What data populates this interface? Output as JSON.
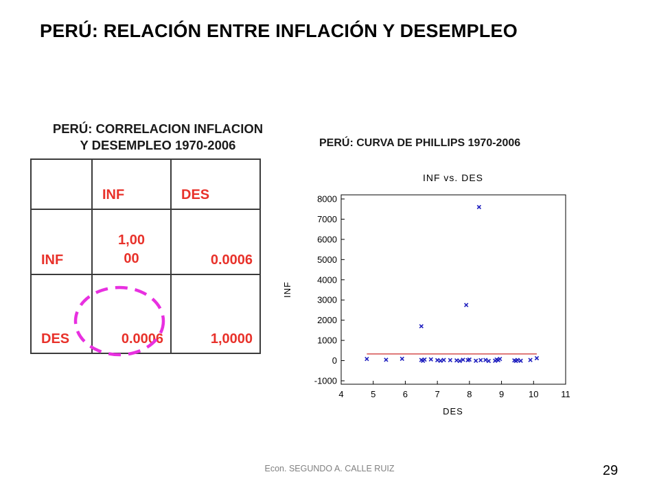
{
  "slide": {
    "title": "PERÚ: RELACIÓN ENTRE INFLACIÓN Y DESEMPLEO",
    "footer": "Econ. SEGUNDO A. CALLE RUIZ",
    "page_number": "29",
    "colors": {
      "table_text": "#e8312a",
      "highlight_circle": "#e830e0",
      "marker": "#1f1fbf",
      "fit_line": "#cc2a2a"
    }
  },
  "chart_data": [
    {
      "type": "table",
      "title_line1": "PERÚ: CORRELACION INFLACION",
      "title_line2": "Y DESEMPLEO 1970-2006",
      "columns": [
        "",
        "INF",
        "DES"
      ],
      "rows": [
        {
          "label": "INF",
          "values": [
            "1,00\n00",
            "0.0006"
          ]
        },
        {
          "label": "DES",
          "values": [
            "0.0006",
            "1,0000"
          ]
        }
      ],
      "highlighted_cell": "DES-INF"
    },
    {
      "type": "scatter",
      "heading": "PERÚ: CURVA DE PHILLIPS 1970-2006",
      "title": "INF vs. DES",
      "xlabel": "DES",
      "ylabel": "INF",
      "xlim": [
        4,
        11
      ],
      "ylim": [
        -1000,
        8000
      ],
      "xticks": [
        "4",
        "5",
        "6",
        "7",
        "8",
        "9",
        "10",
        "11"
      ],
      "yticks": [
        "-1000",
        "0",
        "1000",
        "2000",
        "3000",
        "4000",
        "5000",
        "6000",
        "7000",
        "8000"
      ],
      "points": [
        {
          "x": 4.8,
          "y": 80
        },
        {
          "x": 5.4,
          "y": 40
        },
        {
          "x": 5.9,
          "y": 90
        },
        {
          "x": 6.5,
          "y": 1700
        },
        {
          "x": 6.5,
          "y": 30
        },
        {
          "x": 6.55,
          "y": -10
        },
        {
          "x": 6.6,
          "y": 50
        },
        {
          "x": 6.8,
          "y": 60
        },
        {
          "x": 7.0,
          "y": 20
        },
        {
          "x": 7.1,
          "y": -10
        },
        {
          "x": 7.2,
          "y": 30
        },
        {
          "x": 7.4,
          "y": 20
        },
        {
          "x": 7.6,
          "y": 10
        },
        {
          "x": 7.7,
          "y": -20
        },
        {
          "x": 7.8,
          "y": 40
        },
        {
          "x": 7.9,
          "y": 2750
        },
        {
          "x": 7.95,
          "y": 20
        },
        {
          "x": 8.0,
          "y": 50
        },
        {
          "x": 8.2,
          "y": -10
        },
        {
          "x": 8.3,
          "y": 7600
        },
        {
          "x": 8.35,
          "y": 20
        },
        {
          "x": 8.5,
          "y": 30
        },
        {
          "x": 8.6,
          "y": -20
        },
        {
          "x": 8.8,
          "y": -10
        },
        {
          "x": 8.85,
          "y": 50
        },
        {
          "x": 8.9,
          "y": 20
        },
        {
          "x": 8.95,
          "y": 80
        },
        {
          "x": 9.4,
          "y": 10
        },
        {
          "x": 9.45,
          "y": -20
        },
        {
          "x": 9.5,
          "y": 30
        },
        {
          "x": 9.6,
          "y": -10
        },
        {
          "x": 9.9,
          "y": 30
        },
        {
          "x": 10.1,
          "y": 120
        }
      ],
      "fit_line": {
        "x": [
          4.8,
          10.1
        ],
        "y": [
          330,
          330
        ]
      }
    }
  ]
}
